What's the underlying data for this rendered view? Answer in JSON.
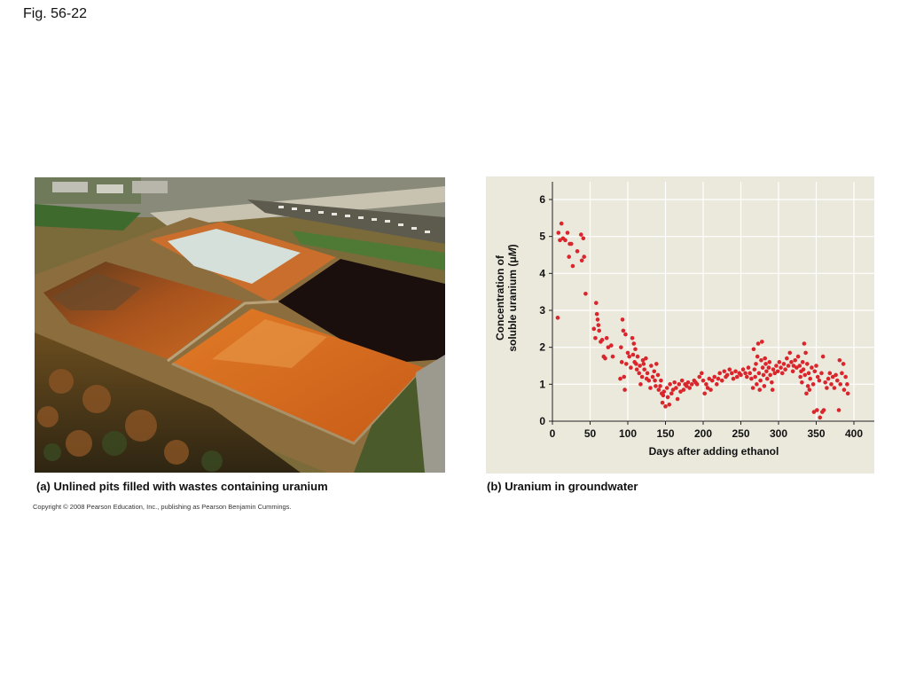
{
  "figure_label": "Fig. 56-22",
  "captions": {
    "a": "(a) Unlined pits filled with wastes containing uranium",
    "b": "(b) Uranium in groundwater"
  },
  "copyright": "Copyright © 2008 Pearson Education, Inc., publishing as Pearson Benjamin Cummings.",
  "colors": {
    "point": "#d9252b",
    "plot_bg": "#ebe8dc",
    "grid": "#ffffff"
  },
  "chart_data": {
    "type": "scatter",
    "title": "",
    "xlabel": "Days after adding ethanol",
    "ylabel_line1": "Concentration of",
    "ylabel_line2_prefix": "soluble uranium (",
    "ylabel_unit_mu": "μ",
    "ylabel_unit_M": "M",
    "ylabel_line2_suffix": ")",
    "xlim": [
      0,
      420
    ],
    "ylim": [
      0,
      6
    ],
    "x_ticks": [
      0,
      50,
      100,
      150,
      200,
      250,
      300,
      350,
      400
    ],
    "y_ticks": [
      0,
      1,
      2,
      3,
      4,
      5,
      6
    ],
    "x_tick_labels": [
      "0",
      "50",
      "100",
      "150",
      "200",
      "250",
      "300",
      "350",
      "400"
    ],
    "y_tick_labels": [
      "0",
      "1",
      "2",
      "3",
      "4",
      "5",
      "6"
    ],
    "grid": true,
    "series": [
      {
        "points": [
          [
            7,
            2.8
          ],
          [
            8,
            5.1
          ],
          [
            10,
            4.9
          ],
          [
            12,
            5.35
          ],
          [
            14,
            4.95
          ],
          [
            17,
            4.9
          ],
          [
            20,
            5.1
          ],
          [
            22,
            4.45
          ],
          [
            23,
            4.8
          ],
          [
            25,
            4.8
          ],
          [
            27,
            4.2
          ],
          [
            33,
            4.6
          ],
          [
            38,
            5.05
          ],
          [
            39,
            4.35
          ],
          [
            41,
            4.95
          ],
          [
            42,
            4.45
          ],
          [
            44,
            3.45
          ],
          [
            55,
            2.5
          ],
          [
            57,
            2.25
          ],
          [
            58,
            3.2
          ],
          [
            59,
            2.9
          ],
          [
            60,
            2.75
          ],
          [
            61,
            2.6
          ],
          [
            62,
            2.45
          ],
          [
            64,
            2.15
          ],
          [
            66,
            2.2
          ],
          [
            68,
            1.75
          ],
          [
            70,
            1.7
          ],
          [
            72,
            2.25
          ],
          [
            74,
            2.0
          ],
          [
            78,
            2.05
          ],
          [
            80,
            1.75
          ],
          [
            90,
            1.15
          ],
          [
            91,
            2.0
          ],
          [
            92,
            1.6
          ],
          [
            93,
            2.75
          ],
          [
            94,
            2.45
          ],
          [
            95,
            1.2
          ],
          [
            96,
            0.85
          ],
          [
            97,
            2.35
          ],
          [
            98,
            1.55
          ],
          [
            100,
            1.85
          ],
          [
            102,
            1.75
          ],
          [
            104,
            1.45
          ],
          [
            106,
            2.25
          ],
          [
            107,
            1.8
          ],
          [
            108,
            2.1
          ],
          [
            109,
            1.6
          ],
          [
            110,
            1.95
          ],
          [
            111,
            1.55
          ],
          [
            112,
            1.4
          ],
          [
            113,
            1.75
          ],
          [
            115,
            1.3
          ],
          [
            116,
            1.5
          ],
          [
            117,
            1.0
          ],
          [
            119,
            1.2
          ],
          [
            120,
            1.65
          ],
          [
            121,
            1.55
          ],
          [
            122,
            1.4
          ],
          [
            124,
            1.7
          ],
          [
            125,
            1.15
          ],
          [
            126,
            1.3
          ],
          [
            128,
            1.1
          ],
          [
            130,
            0.9
          ],
          [
            131,
            1.5
          ],
          [
            133,
            1.2
          ],
          [
            135,
            1.35
          ],
          [
            136,
            1.1
          ],
          [
            137,
            0.95
          ],
          [
            138,
            1.55
          ],
          [
            140,
            1.25
          ],
          [
            141,
            0.85
          ],
          [
            143,
            0.95
          ],
          [
            144,
            1.1
          ],
          [
            145,
            0.75
          ],
          [
            146,
            0.5
          ],
          [
            147,
            0.7
          ],
          [
            148,
            0.8
          ],
          [
            150,
            0.4
          ],
          [
            152,
            0.9
          ],
          [
            153,
            0.65
          ],
          [
            155,
            0.45
          ],
          [
            156,
            1.0
          ],
          [
            158,
            0.75
          ],
          [
            160,
            0.85
          ],
          [
            162,
            1.05
          ],
          [
            164,
            0.9
          ],
          [
            166,
            0.6
          ],
          [
            168,
            1.0
          ],
          [
            170,
            0.8
          ],
          [
            172,
            1.1
          ],
          [
            174,
            0.85
          ],
          [
            176,
            1.0
          ],
          [
            178,
            0.95
          ],
          [
            180,
            1.05
          ],
          [
            182,
            0.9
          ],
          [
            185,
            1.0
          ],
          [
            188,
            1.1
          ],
          [
            190,
            1.05
          ],
          [
            192,
            1.0
          ],
          [
            195,
            1.2
          ],
          [
            198,
            1.3
          ],
          [
            200,
            1.1
          ],
          [
            202,
            0.75
          ],
          [
            204,
            1.0
          ],
          [
            206,
            0.9
          ],
          [
            208,
            1.15
          ],
          [
            210,
            0.85
          ],
          [
            212,
            1.1
          ],
          [
            215,
            1.2
          ],
          [
            218,
            1.0
          ],
          [
            220,
            1.15
          ],
          [
            222,
            1.3
          ],
          [
            225,
            1.1
          ],
          [
            228,
            1.35
          ],
          [
            230,
            1.2
          ],
          [
            232,
            1.25
          ],
          [
            235,
            1.4
          ],
          [
            238,
            1.3
          ],
          [
            240,
            1.15
          ],
          [
            243,
            1.35
          ],
          [
            245,
            1.2
          ],
          [
            248,
            1.3
          ],
          [
            250,
            1.25
          ],
          [
            253,
            1.4
          ],
          [
            256,
            1.3
          ],
          [
            258,
            1.2
          ],
          [
            260,
            1.45
          ],
          [
            262,
            1.3
          ],
          [
            264,
            1.15
          ],
          [
            266,
            0.9
          ],
          [
            267,
            1.95
          ],
          [
            268,
            1.4
          ],
          [
            269,
            1.2
          ],
          [
            270,
            1.55
          ],
          [
            271,
            1.0
          ],
          [
            272,
            1.75
          ],
          [
            273,
            2.1
          ],
          [
            274,
            1.3
          ],
          [
            275,
            0.85
          ],
          [
            276,
            1.1
          ],
          [
            277,
            1.65
          ],
          [
            278,
            2.15
          ],
          [
            279,
            1.45
          ],
          [
            280,
            1.25
          ],
          [
            281,
            0.95
          ],
          [
            282,
            1.7
          ],
          [
            283,
            1.55
          ],
          [
            284,
            1.35
          ],
          [
            285,
            1.15
          ],
          [
            287,
            1.45
          ],
          [
            288,
            1.6
          ],
          [
            289,
            1.25
          ],
          [
            291,
            1.05
          ],
          [
            292,
            0.85
          ],
          [
            293,
            1.4
          ],
          [
            295,
            1.3
          ],
          [
            297,
            1.5
          ],
          [
            299,
            1.35
          ],
          [
            301,
            1.6
          ],
          [
            303,
            1.45
          ],
          [
            305,
            1.3
          ],
          [
            307,
            1.55
          ],
          [
            309,
            1.4
          ],
          [
            311,
            1.7
          ],
          [
            313,
            1.5
          ],
          [
            315,
            1.85
          ],
          [
            317,
            1.6
          ],
          [
            319,
            1.35
          ],
          [
            320,
            1.5
          ],
          [
            322,
            1.65
          ],
          [
            324,
            1.45
          ],
          [
            326,
            1.75
          ],
          [
            328,
            1.5
          ],
          [
            329,
            1.2
          ],
          [
            330,
            1.35
          ],
          [
            331,
            1.05
          ],
          [
            332,
            1.6
          ],
          [
            333,
            1.4
          ],
          [
            334,
            2.1
          ],
          [
            335,
            1.25
          ],
          [
            336,
            1.85
          ],
          [
            337,
            0.75
          ],
          [
            338,
            1.55
          ],
          [
            339,
            0.95
          ],
          [
            340,
            1.3
          ],
          [
            341,
            0.85
          ],
          [
            342,
            1.15
          ],
          [
            344,
            1.45
          ],
          [
            346,
            1.0
          ],
          [
            347,
            0.25
          ],
          [
            348,
            1.35
          ],
          [
            350,
            1.5
          ],
          [
            351,
            0.3
          ],
          [
            352,
            1.2
          ],
          [
            354,
            1.1
          ],
          [
            355,
            0.1
          ],
          [
            357,
            1.3
          ],
          [
            358,
            0.25
          ],
          [
            359,
            1.75
          ],
          [
            360,
            0.3
          ],
          [
            362,
            1.05
          ],
          [
            364,
            0.9
          ],
          [
            366,
            1.15
          ],
          [
            368,
            1.3
          ],
          [
            370,
            1.0
          ],
          [
            372,
            1.2
          ],
          [
            374,
            0.9
          ],
          [
            376,
            1.25
          ],
          [
            378,
            1.1
          ],
          [
            380,
            0.3
          ],
          [
            381,
            1.65
          ],
          [
            382,
            1.0
          ],
          [
            384,
            1.3
          ],
          [
            386,
            1.55
          ],
          [
            387,
            0.85
          ],
          [
            389,
            1.2
          ],
          [
            391,
            1.0
          ],
          [
            392,
            0.75
          ]
        ]
      }
    ]
  }
}
